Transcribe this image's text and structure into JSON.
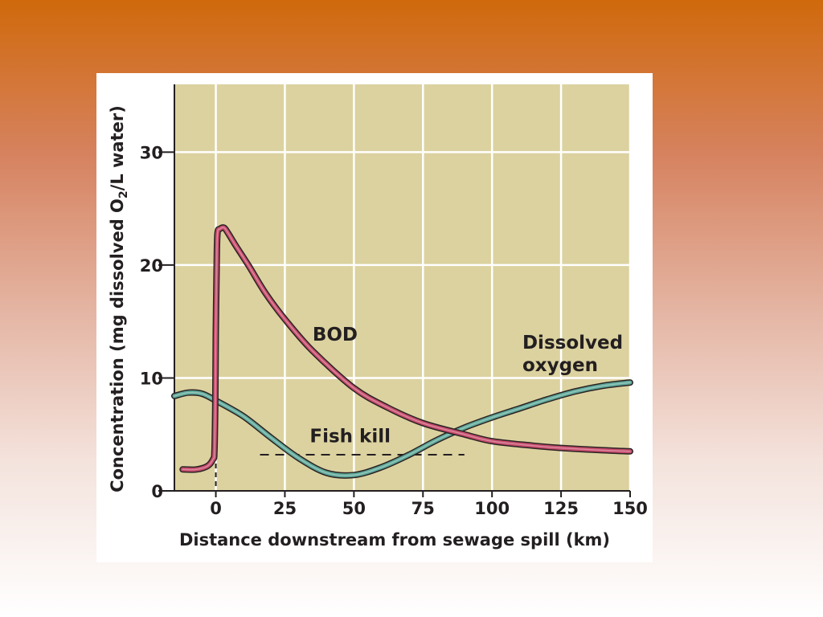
{
  "colors": {
    "page_background": "#d0690c",
    "plot_background": "#dcd2a0",
    "gridline": "#ffffff",
    "bod_line": "#c74d6d",
    "oxygen_line": "#5fa99a",
    "axis_text": "#231f20"
  },
  "chart_data": {
    "type": "line",
    "title": "",
    "xlabel": "Distance downstream from sewage spill (km)",
    "ylabel": "Concentration (mg dissolved O2/L water)",
    "ylabel_parts": [
      "Concentration (mg dissolved O",
      "2",
      "/L water)"
    ],
    "xlim": [
      -15,
      150
    ],
    "ylim": [
      0,
      36
    ],
    "x_ticks": [
      0,
      25,
      50,
      75,
      100,
      125,
      150
    ],
    "y_ticks": [
      0,
      10,
      20,
      30
    ],
    "grid": true,
    "legend": "none",
    "series": [
      {
        "name": "BOD",
        "color": "#c74d6d",
        "points": [
          [
            -12,
            1.9
          ],
          [
            -7,
            1.9
          ],
          [
            -3,
            2.2
          ],
          [
            -1,
            2.8
          ],
          [
            -0.5,
            3.5
          ],
          [
            -0.2,
            8
          ],
          [
            0,
            14
          ],
          [
            0.3,
            20
          ],
          [
            0.6,
            22.8
          ],
          [
            1.5,
            23.2
          ],
          [
            3,
            23.3
          ],
          [
            4.5,
            22.8
          ],
          [
            7,
            21.8
          ],
          [
            12,
            19.9
          ],
          [
            18,
            17.5
          ],
          [
            25,
            15.2
          ],
          [
            35,
            12.4
          ],
          [
            50,
            9.1
          ],
          [
            62,
            7.4
          ],
          [
            75,
            6.0
          ],
          [
            90,
            5.0
          ],
          [
            100,
            4.4
          ],
          [
            115,
            4.0
          ],
          [
            125,
            3.8
          ],
          [
            140,
            3.6
          ],
          [
            150,
            3.5
          ]
        ]
      },
      {
        "name": "Dissolved oxygen",
        "color": "#5fa99a",
        "points": [
          [
            -15,
            8.4
          ],
          [
            -10,
            8.7
          ],
          [
            -5,
            8.6
          ],
          [
            0,
            8.0
          ],
          [
            10,
            6.6
          ],
          [
            20,
            4.7
          ],
          [
            30,
            2.9
          ],
          [
            40,
            1.6
          ],
          [
            50,
            1.4
          ],
          [
            60,
            2.1
          ],
          [
            70,
            3.2
          ],
          [
            80,
            4.5
          ],
          [
            90,
            5.6
          ],
          [
            100,
            6.5
          ],
          [
            110,
            7.3
          ],
          [
            120,
            8.1
          ],
          [
            130,
            8.8
          ],
          [
            140,
            9.3
          ],
          [
            150,
            9.6
          ]
        ]
      }
    ],
    "annotations": [
      {
        "text": "BOD",
        "x": 35,
        "y": 13.3
      },
      {
        "text": "Dissolved",
        "x": 111,
        "y": 12.6
      },
      {
        "text": "oxygen",
        "x": 111,
        "y": 10.6
      },
      {
        "text": "Fish kill",
        "x": 34,
        "y": 4.3
      }
    ],
    "fish_kill_threshold": {
      "y": 3.2,
      "x_from": 16,
      "x_to": 90
    },
    "spill_marker": {
      "x": 0,
      "y_from": 0,
      "y_to": 3.2
    }
  }
}
